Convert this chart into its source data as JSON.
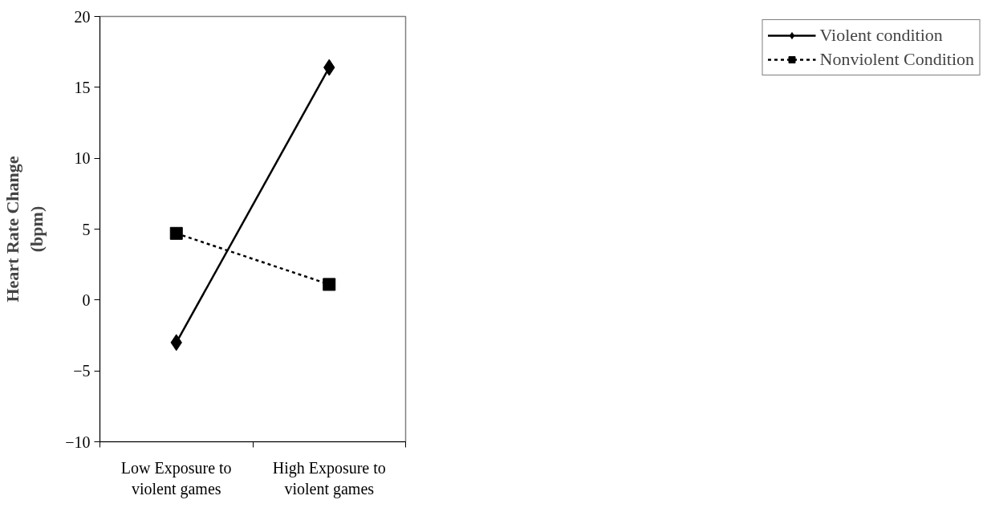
{
  "chart_data": {
    "type": "line",
    "ylabel": "Heart Rate Change (bpm)",
    "categories": [
      "Low Exposure to violent games",
      "High Exposure to violent games"
    ],
    "series": [
      {
        "name": "Violent condition",
        "color": "#000000",
        "values": [
          -3,
          16.4
        ],
        "marker": "diamond",
        "line_style": "solid"
      },
      {
        "name": "Nonviolent Condition",
        "color": "#000000",
        "values": [
          4.7,
          1.1
        ],
        "marker": "square",
        "line_style": "dotted"
      }
    ],
    "ylim": [
      -10,
      20
    ],
    "yticks": [
      -10,
      -5,
      0,
      5,
      10,
      15,
      20
    ],
    "grid": false,
    "legend": "right"
  }
}
